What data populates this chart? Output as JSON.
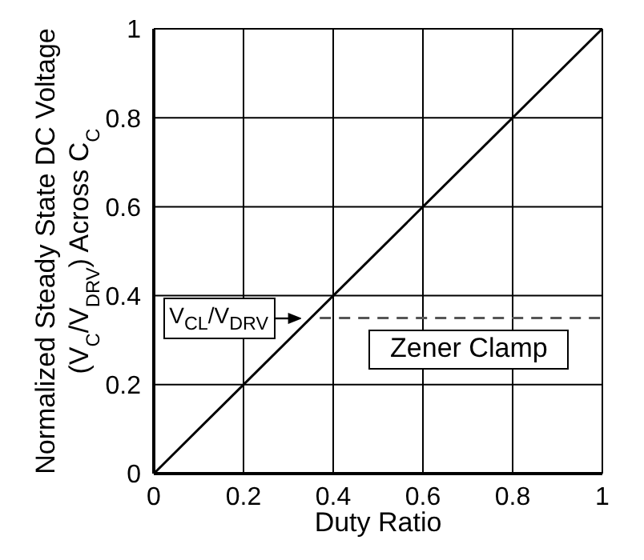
{
  "chart_data": {
    "type": "line",
    "xlabel": "Duty Ratio",
    "ylabel": "Normalized Steady State DC Voltage (V$_{C}$/V$_{DRV}$) Across C$_{C}$",
    "series": [
      {
        "color": "#000000",
        "x": [
          0,
          1
        ],
        "values": [
          0,
          1
        ]
      },
      {
        "color": "#555555",
        "x": [
          0.37,
          1
        ],
        "values": [
          0.35,
          0.35
        ],
        "line_style": "dashed"
      }
    ],
    "xlim": [
      0,
      1
    ],
    "ylim": [
      0,
      1
    ],
    "xticks": [
      0,
      0.2,
      0.4,
      0.6,
      0.8,
      1
    ],
    "yticks": [
      0,
      0.2,
      0.4,
      0.6,
      0.8,
      1
    ],
    "grid": true,
    "annotations": [
      {
        "text": "V$_{CL}$/V$_{DRV}$",
        "x": 0.33,
        "y": 0.35
      },
      "Zener Clamp"
    ]
  }
}
